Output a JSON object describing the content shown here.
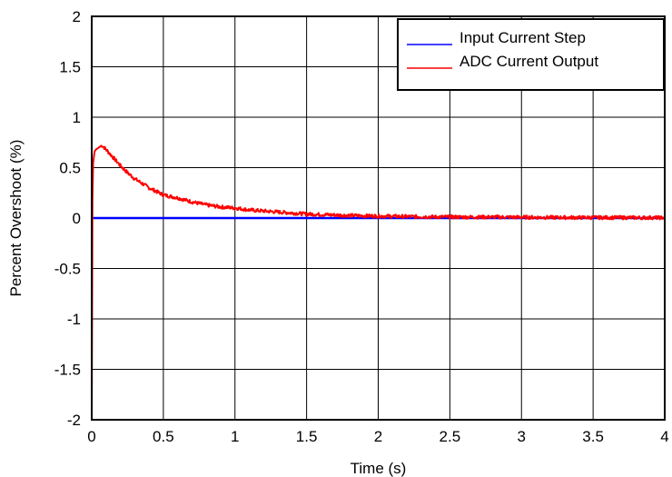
{
  "chart_data": {
    "type": "line",
    "xlabel": "Time (s)",
    "ylabel": "Percent Overshoot (%)",
    "xlim": [
      0,
      4
    ],
    "ylim": [
      -2,
      2
    ],
    "xticks": [
      "0",
      "0.5",
      "1",
      "1.5",
      "2",
      "2.5",
      "3",
      "3.5",
      "4"
    ],
    "yticks": [
      "2",
      "1.5",
      "1",
      "0.5",
      "0",
      "-0.5",
      "-1",
      "-1.5",
      "-2"
    ],
    "grid": true,
    "legend_position": "top-right",
    "series": [
      {
        "name": "Input Current Step",
        "color": "#0000ff",
        "x": [
          0.0,
          4.0
        ],
        "y": [
          0.0,
          0.0
        ]
      },
      {
        "name": "ADC Current Output",
        "color": "#ff0000",
        "x": [
          0.0,
          0.005,
          0.01,
          0.02,
          0.03,
          0.05,
          0.07,
          0.08,
          0.1,
          0.15,
          0.2,
          0.25,
          0.3,
          0.4,
          0.5,
          0.6,
          0.7,
          0.8,
          0.9,
          1.0,
          1.1,
          1.2,
          1.3,
          1.4,
          1.5,
          1.6,
          1.7,
          1.8,
          2.0,
          2.2,
          2.4,
          2.6,
          2.8,
          3.0,
          3.2,
          3.4,
          3.6,
          3.8,
          4.0
        ],
        "y": [
          -2.0,
          0.2,
          0.55,
          0.66,
          0.68,
          0.7,
          0.72,
          0.71,
          0.68,
          0.6,
          0.52,
          0.45,
          0.39,
          0.3,
          0.23,
          0.2,
          0.16,
          0.13,
          0.11,
          0.1,
          0.08,
          0.07,
          0.06,
          0.05,
          0.04,
          0.035,
          0.03,
          0.025,
          0.02,
          0.015,
          0.012,
          0.01,
          0.01,
          0.008,
          0.006,
          0.005,
          0.005,
          0.004,
          0.003
        ]
      }
    ]
  }
}
